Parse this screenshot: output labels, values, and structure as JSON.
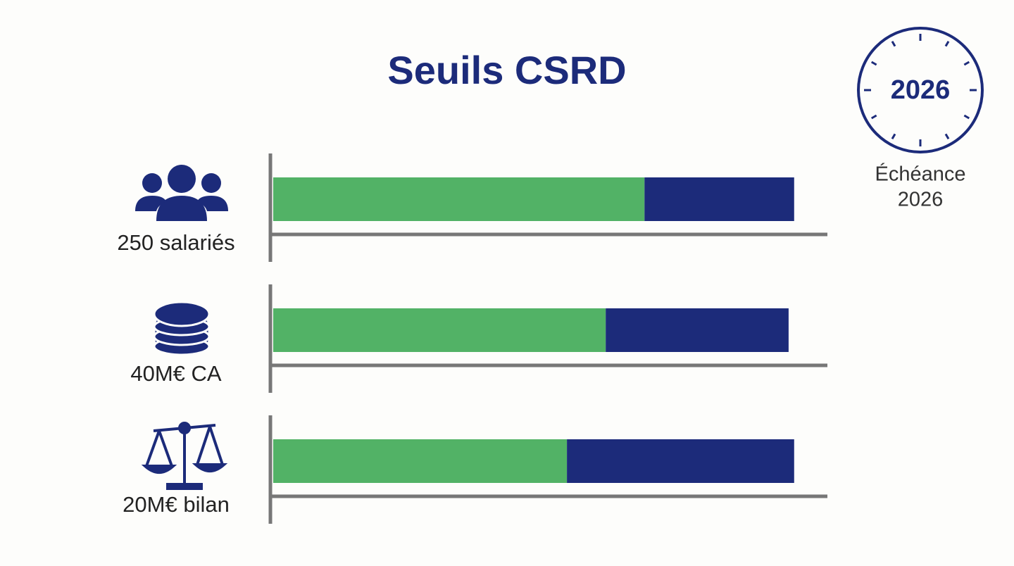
{
  "chart_data": {
    "type": "bar",
    "orientation": "horizontal",
    "stacked": true,
    "title": "Seuils CSRD",
    "categories": [
      "250 salariés",
      "40M€ CA",
      "20M€ bilan"
    ],
    "series": [
      {
        "color": "#52b266",
        "values": [
          67,
          60,
          53
        ]
      },
      {
        "color": "#1c2b7a",
        "values": [
          27,
          33,
          41
        ]
      }
    ],
    "xlim": [
      0,
      100
    ],
    "badge": {
      "label": "2026",
      "caption": [
        "Échéance",
        "2026"
      ]
    }
  }
}
